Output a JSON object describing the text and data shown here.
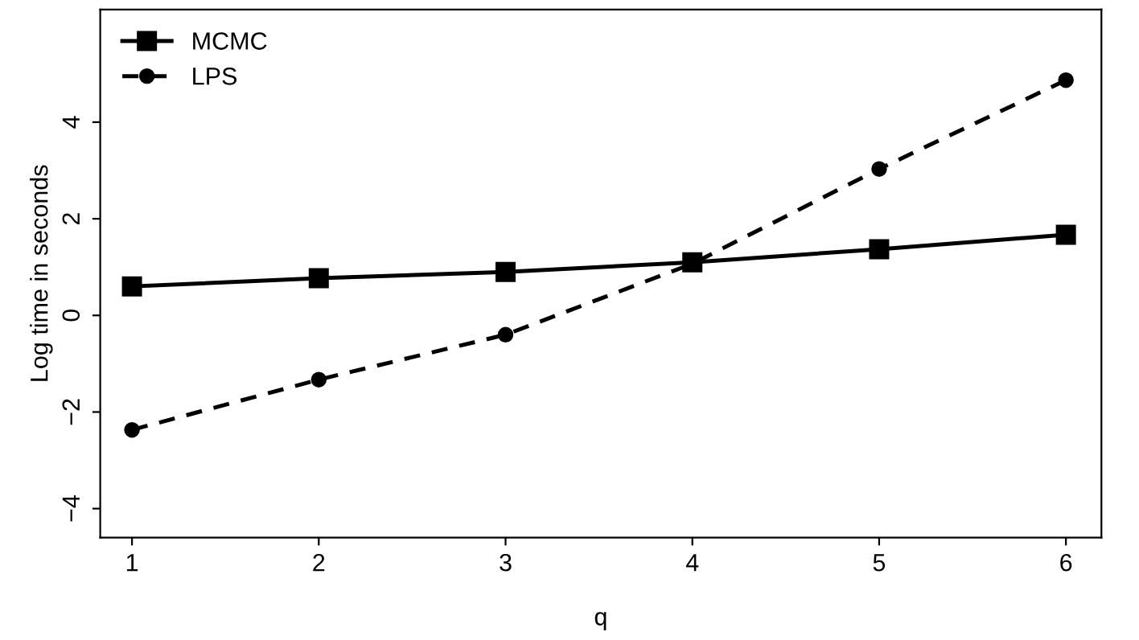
{
  "chart_data": {
    "type": "line",
    "xlabel": "q",
    "ylabel": "Log time in seconds",
    "x": [
      1,
      2,
      3,
      4,
      5,
      6
    ],
    "series": [
      {
        "name": "MCMC",
        "color": "#000000",
        "values": [
          0.6,
          0.77,
          0.9,
          1.1,
          1.37,
          1.67
        ],
        "marker": "square",
        "line_style": "solid"
      },
      {
        "name": "LPS",
        "color": "#000000",
        "values": [
          -2.37,
          -1.33,
          -0.4,
          1.07,
          3.03,
          4.87
        ],
        "marker": "circle",
        "line_style": "dashed"
      }
    ],
    "xlim": [
      0.83,
      6.19
    ],
    "xticks": [
      1,
      2,
      3,
      4,
      5,
      6
    ],
    "ylim": [
      -4.6,
      6.33
    ],
    "yticks": [
      -4,
      -2,
      0,
      2,
      4
    ],
    "grid": false,
    "legend": "top left"
  }
}
